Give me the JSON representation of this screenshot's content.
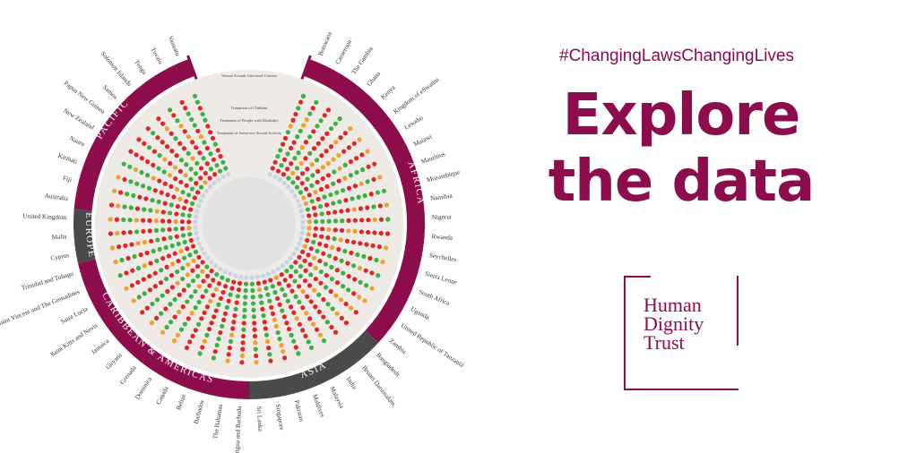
{
  "hashtag": "#ChangingLawsChangingLives",
  "headline": {
    "line1": "Explore",
    "line2": "the data"
  },
  "logo": {
    "line1": "Human",
    "line2": "Dignity",
    "line3": "Trust"
  },
  "ring_labels": [
    "Sexual Assault Universal Criteria",
    "Treatment of Children",
    "Treatment of People with Disability",
    "Treatment of Same-sex Sexual Activity"
  ],
  "regions": [
    {
      "name": "AFRICA",
      "color": "#8c0c4c"
    },
    {
      "name": "ASIA",
      "color": "#4a4a4a"
    },
    {
      "name": "CARIBBEAN & AMERICAS",
      "color": "#8c0c4c"
    },
    {
      "name": "EUROPE",
      "color": "#4a4a4a"
    },
    {
      "name": "PACIFIC",
      "color": "#8c0c4c"
    }
  ],
  "status_colors": {
    "green": "#3cb043",
    "red": "#e0252a",
    "orange": "#f0a030",
    "empty": "#c8d4e0"
  },
  "countries": [
    {
      "name": "Botswana",
      "region": "AFRICA"
    },
    {
      "name": "Cameroon",
      "region": "AFRICA"
    },
    {
      "name": "The Gambia",
      "region": "AFRICA"
    },
    {
      "name": "Ghana",
      "region": "AFRICA"
    },
    {
      "name": "Kenya",
      "region": "AFRICA"
    },
    {
      "name": "Kingdom of eSwatini",
      "region": "AFRICA"
    },
    {
      "name": "Lesotho",
      "region": "AFRICA"
    },
    {
      "name": "Malawi",
      "region": "AFRICA"
    },
    {
      "name": "Mauritius",
      "region": "AFRICA"
    },
    {
      "name": "Mozambique",
      "region": "AFRICA"
    },
    {
      "name": "Namibia",
      "region": "AFRICA"
    },
    {
      "name": "Nigeria",
      "region": "AFRICA"
    },
    {
      "name": "Rwanda",
      "region": "AFRICA"
    },
    {
      "name": "Seychelles",
      "region": "AFRICA"
    },
    {
      "name": "Sierra Leone",
      "region": "AFRICA"
    },
    {
      "name": "South Africa",
      "region": "AFRICA"
    },
    {
      "name": "Uganda",
      "region": "AFRICA"
    },
    {
      "name": "United Republic of Tanzania",
      "region": "AFRICA"
    },
    {
      "name": "Zambia",
      "region": "AFRICA"
    },
    {
      "name": "Bangladesh",
      "region": "ASIA"
    },
    {
      "name": "Brunei Darussalam",
      "region": "ASIA"
    },
    {
      "name": "India",
      "region": "ASIA"
    },
    {
      "name": "Malaysia",
      "region": "ASIA"
    },
    {
      "name": "Maldives",
      "region": "ASIA"
    },
    {
      "name": "Pakistan",
      "region": "ASIA"
    },
    {
      "name": "Singapore",
      "region": "ASIA"
    },
    {
      "name": "Sri Lanka",
      "region": "ASIA"
    },
    {
      "name": "Antigua and Barbuda",
      "region": "CARIBBEAN & AMERICAS"
    },
    {
      "name": "The Bahamas",
      "region": "CARIBBEAN & AMERICAS"
    },
    {
      "name": "Barbados",
      "region": "CARIBBEAN & AMERICAS"
    },
    {
      "name": "Belize",
      "region": "CARIBBEAN & AMERICAS"
    },
    {
      "name": "Canada",
      "region": "CARIBBEAN & AMERICAS"
    },
    {
      "name": "Dominica",
      "region": "CARIBBEAN & AMERICAS"
    },
    {
      "name": "Grenada",
      "region": "CARIBBEAN & AMERICAS"
    },
    {
      "name": "Guyana",
      "region": "CARIBBEAN & AMERICAS"
    },
    {
      "name": "Jamaica",
      "region": "CARIBBEAN & AMERICAS"
    },
    {
      "name": "Saint Kitts and Nevis",
      "region": "CARIBBEAN & AMERICAS"
    },
    {
      "name": "Saint Lucia",
      "region": "CARIBBEAN & AMERICAS"
    },
    {
      "name": "Saint Vincent and The Grenadines",
      "region": "CARIBBEAN & AMERICAS"
    },
    {
      "name": "Trinidad and Tobago",
      "region": "CARIBBEAN & AMERICAS"
    },
    {
      "name": "Cyprus",
      "region": "EUROPE"
    },
    {
      "name": "Malta",
      "region": "EUROPE"
    },
    {
      "name": "United Kingdom",
      "region": "EUROPE"
    },
    {
      "name": "Australia",
      "region": "PACIFIC"
    },
    {
      "name": "Fiji",
      "region": "PACIFIC"
    },
    {
      "name": "Kiribati",
      "region": "PACIFIC"
    },
    {
      "name": "Nauru",
      "region": "PACIFIC"
    },
    {
      "name": "New Zealand",
      "region": "PACIFIC"
    },
    {
      "name": "Papua New Guinea",
      "region": "PACIFIC"
    },
    {
      "name": "Samoa",
      "region": "PACIFIC"
    },
    {
      "name": "Solomon Islands",
      "region": "PACIFIC"
    },
    {
      "name": "Tonga",
      "region": "PACIFIC"
    },
    {
      "name": "Tuvalu",
      "region": "PACIFIC"
    },
    {
      "name": "Vanuatu",
      "region": "PACIFIC"
    }
  ]
}
